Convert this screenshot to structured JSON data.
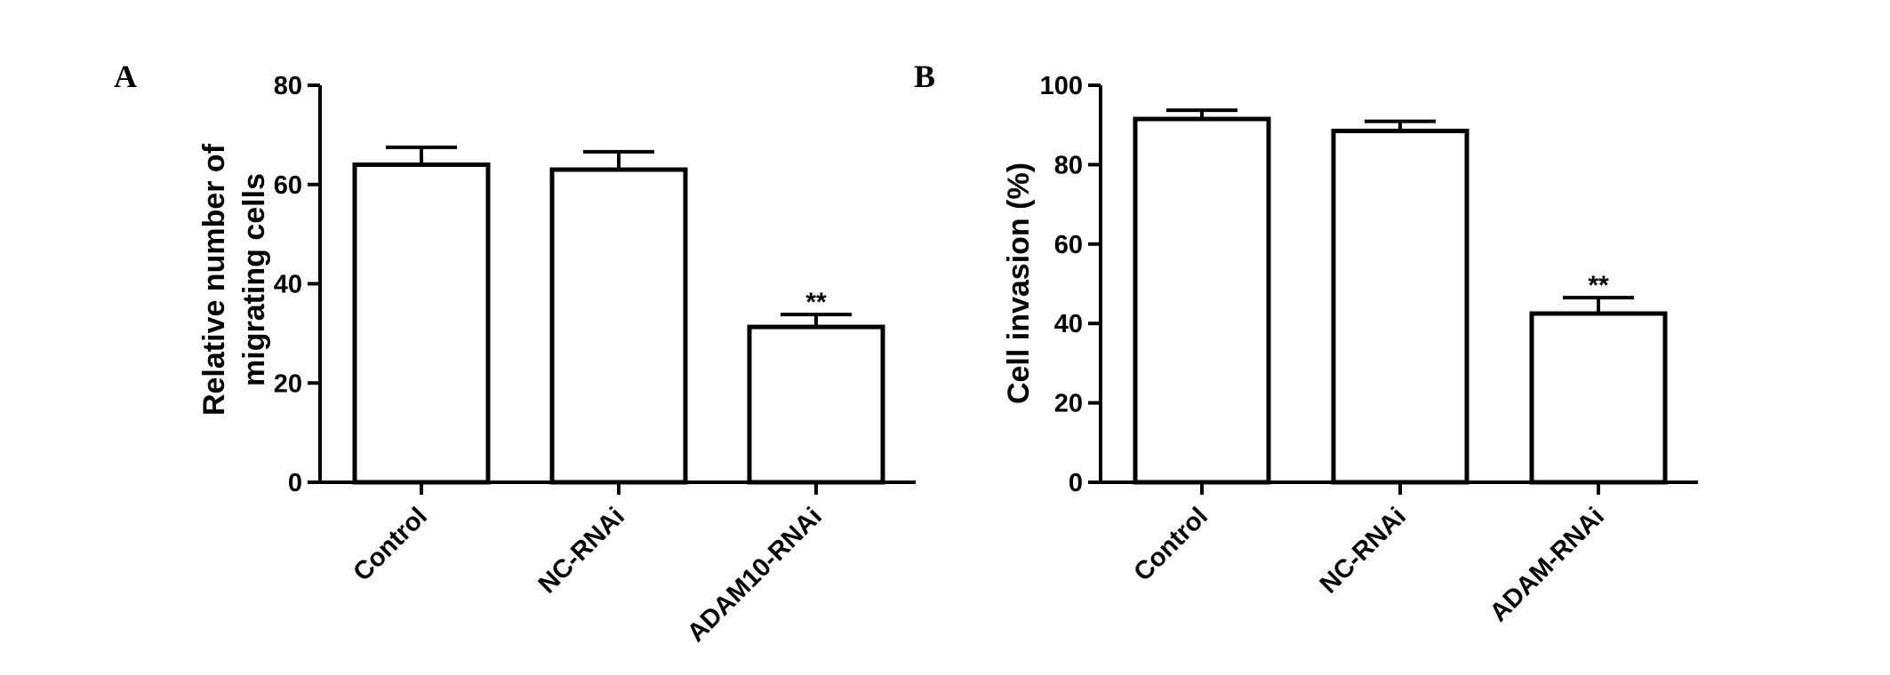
{
  "chart_data": [
    {
      "panel": "A",
      "type": "bar",
      "categories": [
        "Control",
        "NC-RNAi",
        "ADAM10-RNAi"
      ],
      "values": [
        64,
        63,
        31.3
      ],
      "errors": [
        3.5,
        3.6,
        2.5
      ],
      "annotations": [
        "",
        "",
        "**"
      ],
      "ylabel_lines": [
        "Relative number of",
        "migrating cells"
      ],
      "ylim": [
        0,
        80
      ],
      "yticks": [
        0,
        20,
        40,
        60,
        80
      ],
      "grid": false,
      "legend": "none"
    },
    {
      "panel": "B",
      "type": "bar",
      "categories": [
        "Control",
        "NC-RNAi",
        "ADAM-RNAi"
      ],
      "values": [
        91.5,
        88.5,
        42.5
      ],
      "errors": [
        2.2,
        2.4,
        4.0
      ],
      "annotations": [
        "",
        "",
        "**"
      ],
      "ylabel_lines": [
        "Cell invasion (%)"
      ],
      "ylim": [
        0,
        100
      ],
      "yticks": [
        0,
        20,
        40,
        60,
        80,
        100
      ],
      "grid": false,
      "legend": "none"
    }
  ]
}
